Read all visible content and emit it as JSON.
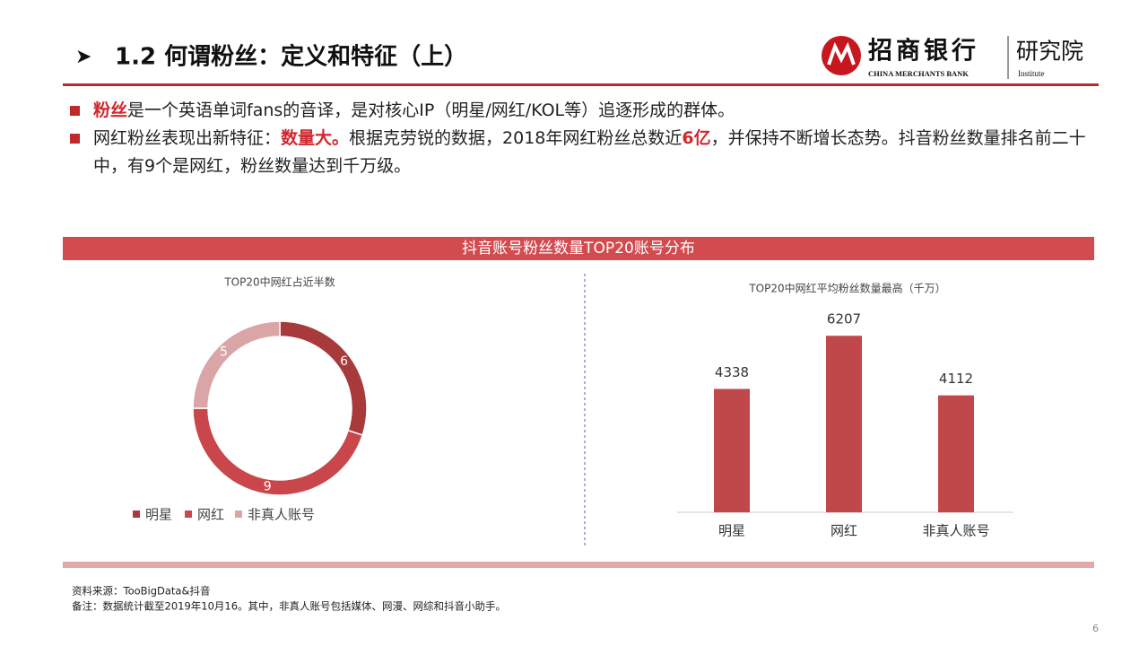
{
  "header": {
    "title": "1.2 何谓粉丝：定义和特征（上）",
    "logo_name": "招商银行",
    "logo_en": "CHINA MERCHANTS BANK",
    "logo_unit": "研究院",
    "logo_unit_en": "Institute"
  },
  "bullets": [
    [
      {
        "text": "粉丝",
        "highlight": true
      },
      {
        "text": "是一个英语单词fans的音译，是对核心IP（明星/网红/KOL等）追逐形成的群体。",
        "highlight": false
      }
    ],
    [
      {
        "text": "网红粉丝表现出新特征：",
        "highlight": false
      },
      {
        "text": "数量大。",
        "highlight": true
      },
      {
        "text": "根据克劳锐的数据，2018年网红粉丝总数近",
        "highlight": false
      },
      {
        "text": "6亿",
        "highlight": true
      },
      {
        "text": "，并保持不断增长态势。抖音粉丝数量排名前二十中，有9个是网红，粉丝数量达到千万级。",
        "highlight": false
      }
    ]
  ],
  "banner": "抖音账号粉丝数量TOP20账号分布",
  "chart_data": [
    {
      "type": "donut",
      "title": "TOP20中网红占近半数",
      "categories": [
        "明星",
        "网红",
        "非真人账号"
      ],
      "values": [
        6,
        9,
        5
      ],
      "colors": [
        "#a83a3c",
        "#c9474b",
        "#d9a5a6"
      ],
      "legend": "bottom"
    },
    {
      "type": "bar",
      "title": "TOP20中网红平均粉丝数量最高（千万）",
      "categories": [
        "明星",
        "网红",
        "非真人账号"
      ],
      "values": [
        4338,
        6207,
        4112
      ],
      "color": "#c0474a"
    }
  ],
  "footer": {
    "source": "资料来源：TooBigData&抖音",
    "note": "备注：数据统计截至2019年10月16。其中，非真人账号包括媒体、网漫、网综和抖音小助手。"
  },
  "page_number": 6
}
